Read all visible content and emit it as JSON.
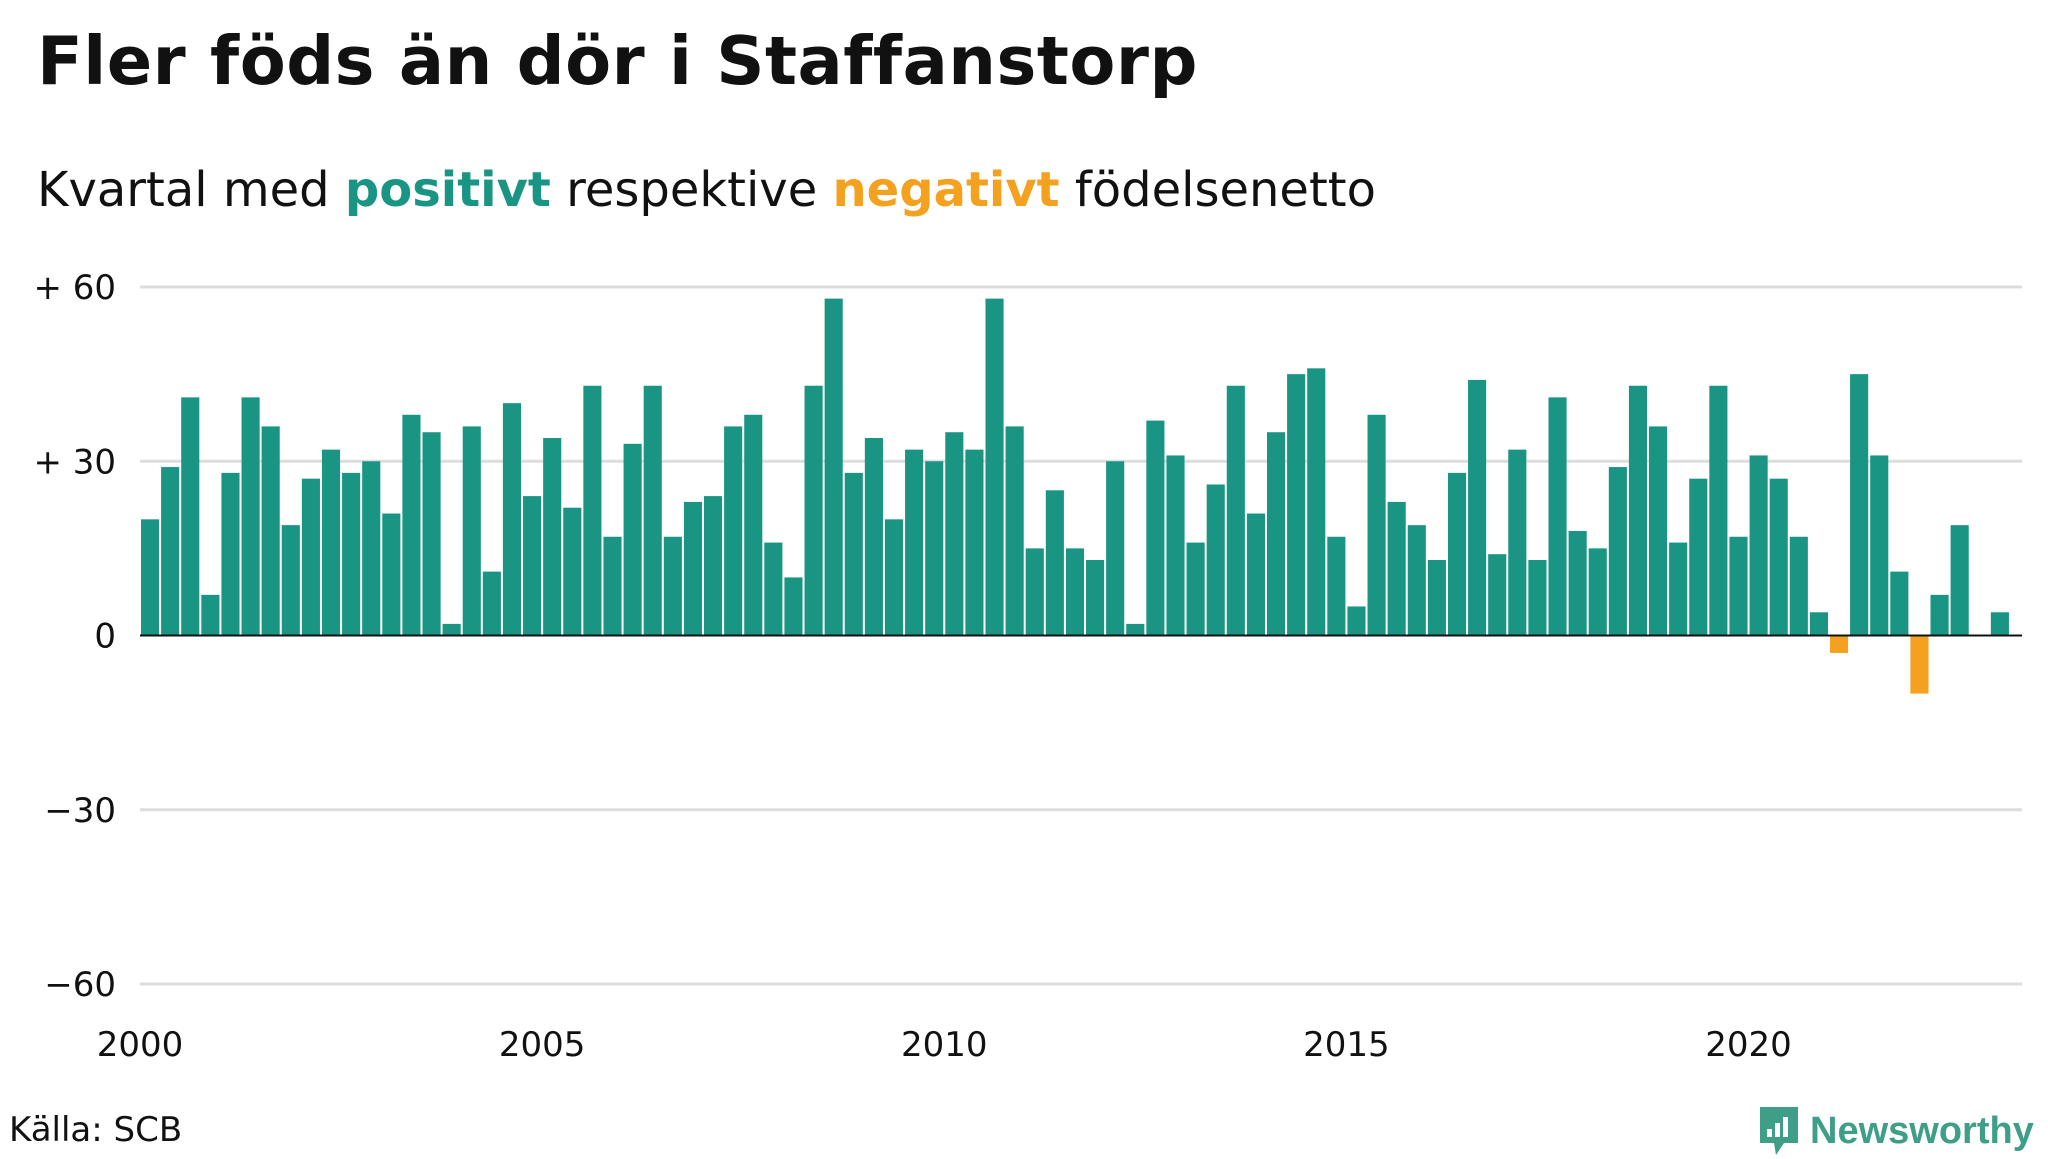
{
  "title": "Fler föds än dör i Staffanstorp",
  "subtitle": {
    "prefix": "Kvartal med ",
    "positive_word": "positivt",
    "middle": " respektive ",
    "negative_word": "negativt",
    "suffix": " födelsenetto"
  },
  "source": "Källa: SCB",
  "logo_text": "Newsworthy",
  "colors": {
    "positive": "#1a9583",
    "negative": "#f4a11f",
    "grid": "#dddddd",
    "zero_line": "#111111",
    "logo": "#3e9e88"
  },
  "chart_data": {
    "type": "bar",
    "x_start": "2000 Q1",
    "frequency": "quarterly",
    "values": [
      20,
      29,
      41,
      7,
      28,
      41,
      36,
      19,
      27,
      32,
      28,
      30,
      21,
      38,
      35,
      2,
      36,
      11,
      40,
      24,
      34,
      22,
      43,
      17,
      33,
      43,
      17,
      23,
      24,
      36,
      38,
      16,
      10,
      43,
      58,
      28,
      34,
      20,
      32,
      30,
      35,
      32,
      58,
      36,
      15,
      25,
      15,
      13,
      30,
      2,
      37,
      31,
      16,
      26,
      43,
      21,
      35,
      45,
      46,
      17,
      5,
      38,
      23,
      19,
      13,
      28,
      44,
      14,
      32,
      13,
      41,
      18,
      15,
      29,
      43,
      36,
      16,
      27,
      43,
      17,
      31,
      27,
      17,
      4,
      -3,
      45,
      31,
      11,
      -10,
      7,
      19,
      null,
      4
    ],
    "y_ticks": [
      60,
      30,
      0,
      -30,
      -60
    ],
    "y_tick_labels": [
      "+ 60",
      "+ 30",
      "0",
      "−30",
      "−60"
    ],
    "x_ticks": [
      2000,
      2005,
      2010,
      2015,
      2020
    ],
    "x_tick_labels": [
      "2000",
      "2005",
      "2010",
      "2015",
      "2020"
    ],
    "x_range": [
      2000,
      2023.4
    ],
    "ylim": [
      -60,
      60
    ],
    "grid": true,
    "legend": "none"
  }
}
